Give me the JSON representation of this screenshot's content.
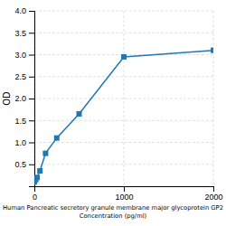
{
  "chart_data": {
    "type": "line",
    "x": [
      0,
      15.6,
      31.25,
      62.5,
      125,
      250,
      500,
      1000,
      2000
    ],
    "values": [
      0.1,
      0.15,
      0.2,
      0.35,
      0.75,
      1.1,
      1.65,
      2.95,
      3.1
    ],
    "xlabel": "Human Pancreatic secretory granule membrane major glycoprotein GP2\nConcentration (pg/ml)",
    "ylabel": "OD",
    "xlim": [
      0,
      2000
    ],
    "ylim": [
      0,
      4
    ],
    "xticks": [
      0,
      1000,
      2000
    ],
    "yticks": [
      0.5,
      {
        "value": 1.0,
        "label": "1.0"
      },
      1.5,
      {
        "value": 2.0,
        "label": "2.0"
      },
      2.5,
      {
        "value": 3.0,
        "label": "3.0"
      },
      3.5,
      {
        "value": 4.0,
        "label": "4.0"
      }
    ],
    "grid": true,
    "marker": "square"
  }
}
